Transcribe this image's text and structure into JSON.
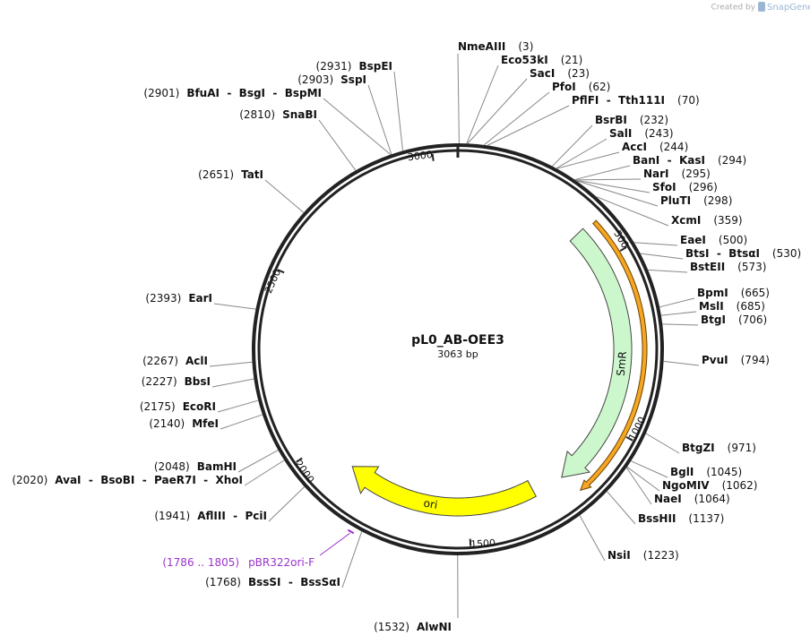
{
  "header": {
    "created_by": "Created by",
    "brand": "SnapGene"
  },
  "map": {
    "name": "pL0_AB-OEE3",
    "size": "3063 bp",
    "ticks": [
      500,
      1000,
      1500,
      2000,
      2500,
      3000
    ],
    "features": [
      {
        "label": "SmR"
      },
      {
        "label": "ori"
      }
    ],
    "primers": [
      {
        "range": "(1786 .. 1805)",
        "name": "pBR322ori-F"
      }
    ],
    "sites": [
      {
        "label": "NmeAIII",
        "position": "(3)"
      },
      {
        "label": "Eco53kI",
        "position": "(21)"
      },
      {
        "label": "SacI",
        "position": "(23)"
      },
      {
        "label": "PfoI",
        "position": "(62)"
      },
      {
        "label": "PflFI  -  Tth111I",
        "position": "(70)"
      },
      {
        "label": "BsrBI",
        "position": "(232)"
      },
      {
        "label": "SalI",
        "position": "(243)"
      },
      {
        "label": "AccI",
        "position": "(244)"
      },
      {
        "label": "BanI  -  KasI",
        "position": "(294)"
      },
      {
        "label": "NarI",
        "position": "(295)"
      },
      {
        "label": "SfoI",
        "position": "(296)"
      },
      {
        "label": "PluTI",
        "position": "(298)"
      },
      {
        "label": "XcmI",
        "position": "(359)"
      },
      {
        "label": "EaeI",
        "position": "(500)"
      },
      {
        "label": "BtsI  -  BtsαI",
        "position": "(530)"
      },
      {
        "label": "BstEII",
        "position": "(573)"
      },
      {
        "label": "BpmI",
        "position": "(665)"
      },
      {
        "label": "MslI",
        "position": "(685)"
      },
      {
        "label": "BtgI",
        "position": "(706)"
      },
      {
        "label": "PvuI",
        "position": "(794)"
      },
      {
        "label": "BtgZI",
        "position": "(971)"
      },
      {
        "label": "BglI",
        "position": "(1045)"
      },
      {
        "label": "NgoMIV",
        "position": "(1062)"
      },
      {
        "label": "NaeI",
        "position": "(1064)"
      },
      {
        "label": "BssHII",
        "position": "(1137)"
      },
      {
        "label": "NsiI",
        "position": "(1223)"
      },
      {
        "label": "AlwNI",
        "position": "(1532)"
      },
      {
        "label": "BssSI  -  BssSαI",
        "position": "(1768)"
      },
      {
        "label": "AflIII  -  PciI",
        "position": "(1941)"
      },
      {
        "label": "AvaI  -  BsoBI  -  PaeR7I  -  XhoI",
        "position": "(2020)"
      },
      {
        "label": "BamHI",
        "position": "(2048)"
      },
      {
        "label": "MfeI",
        "position": "(2140)"
      },
      {
        "label": "EcoRI",
        "position": "(2175)"
      },
      {
        "label": "BbsI",
        "position": "(2227)"
      },
      {
        "label": "AclI",
        "position": "(2267)"
      },
      {
        "label": "EarI",
        "position": "(2393)"
      },
      {
        "label": "TatI",
        "position": "(2651)"
      },
      {
        "label": "SnaBI",
        "position": "(2810)"
      },
      {
        "label": "BfuAI  -  BsgI  -  BspMI",
        "position": "(2901)"
      },
      {
        "label": "SspI",
        "position": "(2903)"
      },
      {
        "label": "BspEI",
        "position": "(2931)"
      }
    ]
  }
}
